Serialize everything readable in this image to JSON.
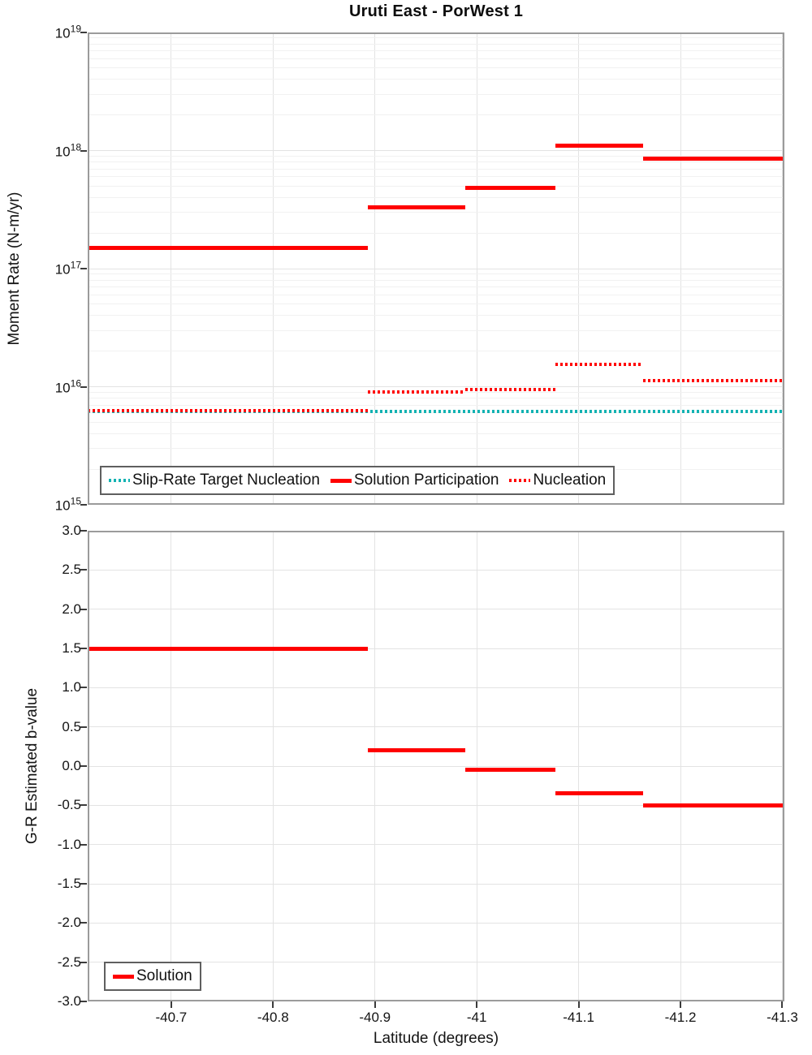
{
  "figure": {
    "title": "Uruti East - PorWest 1"
  },
  "colors": {
    "red": "#ff0000",
    "cyan": "#12b2b2",
    "grid_major": "#e3e3e3",
    "grid_minor": "#f1f1f1",
    "spine": "#9b9b9b",
    "tick": "#3c3c3c",
    "text": "#141414",
    "legend_border": "#5f5f5f"
  },
  "chart_data": [
    {
      "id": "moment_rate",
      "type": "line",
      "title": "Uruti East - PorWest 1",
      "ylabel": "Moment Rate (N-m/yr)",
      "yscale": "log",
      "ylim": [
        1000000000000000.0,
        1e+19
      ],
      "xlim": [
        -40.618,
        -41.302
      ],
      "x_reversed": true,
      "grid": true,
      "ytick_exponents": [
        19,
        18,
        17,
        16,
        15
      ],
      "ytick_labels": [
        "10^19",
        "10^18",
        "10^17",
        "10^16",
        "10^15"
      ],
      "legend_position": "bottom-left",
      "series": [
        {
          "name": "Slip-Rate Target Nucleation",
          "line_style": "dotted",
          "color_key": "cyan",
          "segments": [
            {
              "x_from": -40.618,
              "x_to": -41.302,
              "value": 6200000000000000.0
            }
          ]
        },
        {
          "name": "Solution Participation",
          "line_style": "solid",
          "color_key": "red",
          "segments": [
            {
              "x_from": -40.618,
              "x_to": -40.893,
              "value": 1.5e+17
            },
            {
              "x_from": -40.893,
              "x_to": -40.989,
              "value": 3.3e+17
            },
            {
              "x_from": -40.989,
              "x_to": -41.077,
              "value": 4.8e+17
            },
            {
              "x_from": -41.077,
              "x_to": -41.163,
              "value": 1.1e+18
            },
            {
              "x_from": -41.163,
              "x_to": -41.302,
              "value": 8.5e+17
            }
          ]
        },
        {
          "name": "Nucleation",
          "line_style": "dotted",
          "color_key": "red",
          "segments": [
            {
              "x_from": -40.618,
              "x_to": -40.893,
              "value": 6300000000000000.0
            },
            {
              "x_from": -40.893,
              "x_to": -40.989,
              "value": 9000000000000000.0
            },
            {
              "x_from": -40.989,
              "x_to": -41.077,
              "value": 9500000000000000.0
            },
            {
              "x_from": -41.077,
              "x_to": -41.163,
              "value": 1.55e+16
            },
            {
              "x_from": -41.163,
              "x_to": -41.302,
              "value": 1.12e+16
            }
          ]
        }
      ]
    },
    {
      "id": "b_value",
      "type": "line",
      "ylabel": "G-R Estimated b-value",
      "xlabel": "Latitude (degrees)",
      "yscale": "linear",
      "ylim": [
        -3.0,
        3.0
      ],
      "xlim": [
        -40.618,
        -41.302
      ],
      "x_reversed": true,
      "grid": true,
      "ytick_values": [
        3.0,
        2.5,
        2.0,
        1.5,
        1.0,
        0.5,
        0.0,
        -0.5,
        -1.0,
        -1.5,
        -2.0,
        -2.5,
        -3.0
      ],
      "ytick_labels": [
        "3.0",
        "2.5",
        "2.0",
        "1.5",
        "1.0",
        "0.5",
        "0.0",
        "-0.5",
        "-1.0",
        "-1.5",
        "-2.0",
        "-2.5",
        "-3.0"
      ],
      "xtick_values": [
        -40.7,
        -40.8,
        -40.9,
        -41.0,
        -41.1,
        -41.2,
        -41.3
      ],
      "xtick_labels": [
        "-40.7",
        "-40.8",
        "-40.9",
        "-41",
        "-41.1",
        "-41.2",
        "-41.3"
      ],
      "legend_position": "bottom-left",
      "series": [
        {
          "name": "Solution",
          "line_style": "solid",
          "color_key": "red",
          "segments": [
            {
              "x_from": -40.618,
              "x_to": -40.893,
              "value": 1.5
            },
            {
              "x_from": -40.893,
              "x_to": -40.989,
              "value": 0.2
            },
            {
              "x_from": -40.989,
              "x_to": -41.077,
              "value": -0.05
            },
            {
              "x_from": -41.077,
              "x_to": -41.163,
              "value": -0.35
            },
            {
              "x_from": -41.163,
              "x_to": -41.302,
              "value": -0.5
            }
          ]
        }
      ]
    }
  ]
}
